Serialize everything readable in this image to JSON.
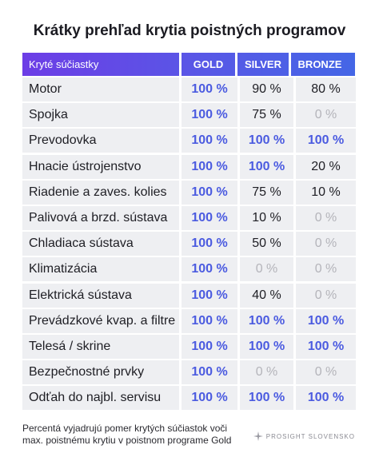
{
  "title": "Krátky prehľad krytia poistných programov",
  "table": {
    "header": [
      "Kryté súčiastky",
      "GOLD",
      "SILVER",
      "BRONZE"
    ],
    "rows": [
      [
        "Motor",
        "100 %",
        "90 %",
        "80 %"
      ],
      [
        "Spojka",
        "100 %",
        "75 %",
        "0 %"
      ],
      [
        "Prevodovka",
        "100 %",
        "100 %",
        "100 %"
      ],
      [
        "Hnacie ústrojenstvo",
        "100 %",
        "100 %",
        "20 %"
      ],
      [
        "Riadenie a zaves. kolies",
        "100 %",
        "75 %",
        "10 %"
      ],
      [
        "Palivová a brzd. sústava",
        "100 %",
        "10 %",
        "0 %"
      ],
      [
        "Chladiaca sústava",
        "100 %",
        "50 %",
        "0 %"
      ],
      [
        "Klimatizácia",
        "100 %",
        "0 %",
        "0 %"
      ],
      [
        "Elektrická sústava",
        "100 %",
        "40 %",
        "0 %"
      ],
      [
        "Prevádzkové kvap. a filtre",
        "100 %",
        "100 %",
        "100 %"
      ],
      [
        "Telesá / skrine",
        "100 %",
        "100 %",
        "100 %"
      ],
      [
        "Bezpečnostné prvky",
        "100 %",
        "0 %",
        "0 %"
      ],
      [
        "Odťah do najbl. servisu",
        "100 %",
        "100 %",
        "100 %"
      ]
    ]
  },
  "footnote": [
    "Percentá vyjadrujú pomer krytých súčiastok voči",
    "max. poistnému krytiu v poistnom programe Gold"
  ],
  "brand": "PROSIGHT SLOVENSKO"
}
